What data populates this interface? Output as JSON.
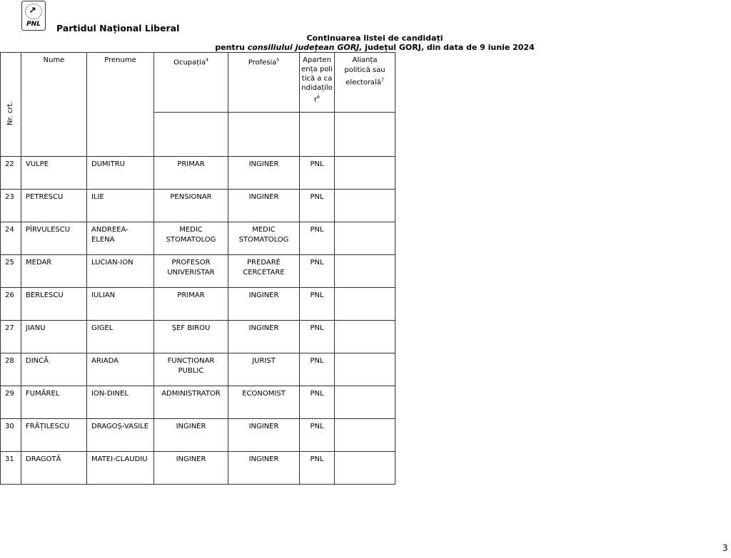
{
  "header": {
    "logo_text": "PNL",
    "party": "Partidul Național Liberal"
  },
  "title": {
    "line1": "Continuarea listei de candidați",
    "line2_prefix": "pentru ",
    "line2_italic": "consiliului județean GORJ,",
    "line2_suffix": " județul GORJ,  din data de 9 iunie 2024"
  },
  "table": {
    "headers": {
      "nr": "Nr. crt.",
      "nume": "Nume",
      "prenume": "Prenume",
      "ocupatia": "Ocupația",
      "ocupatia_sup": "4",
      "profesia": "Profesia",
      "profesia_sup": "5",
      "apartenenta": "Apartenența politică a candidaților",
      "apartenenta_sup": "6",
      "alianta": "Alianța politică sau electorală",
      "alianta_sup": "7"
    },
    "rows": [
      {
        "nr": "22",
        "nume": "VULPE",
        "prenume": "DUMITRU",
        "ocupatia": "PRIMAR",
        "profesia": "INGINER",
        "apartenenta": "PNL",
        "alianta": ""
      },
      {
        "nr": "23",
        "nume": "PETRESCU",
        "prenume": "ILIE",
        "ocupatia": "PENSIONAR",
        "profesia": "INGINER",
        "apartenenta": "PNL",
        "alianta": ""
      },
      {
        "nr": "24",
        "nume": "PÎRVULESCU",
        "prenume": "ANDREEA-ELENA",
        "ocupatia": "MEDIC STOMATOLOG",
        "profesia": "MEDIC STOMATOLOG",
        "apartenenta": "PNL",
        "alianta": ""
      },
      {
        "nr": "25",
        "nume": "MEDAR",
        "prenume": "LUCIAN-ION",
        "ocupatia": "PROFESOR UNIVERISTAR",
        "profesia": "PREDARE CERCETARE",
        "apartenenta": "PNL",
        "alianta": ""
      },
      {
        "nr": "26",
        "nume": "BERLESCU",
        "prenume": "IULIAN",
        "ocupatia": "PRIMAR",
        "profesia": "INGINER",
        "apartenenta": "PNL",
        "alianta": ""
      },
      {
        "nr": "27",
        "nume": "JIANU",
        "prenume": "GIGEL",
        "ocupatia": "ȘEF BIROU",
        "profesia": "INGINER",
        "apartenenta": "PNL",
        "alianta": ""
      },
      {
        "nr": "28",
        "nume": "DINCĂ",
        "prenume": "ARIADA",
        "ocupatia": "FUNCȚIONAR PUBLIC",
        "profesia": "JURIST",
        "apartenenta": "PNL",
        "alianta": ""
      },
      {
        "nr": "29",
        "nume": "FUMĂREL",
        "prenume": "ION-DINEL",
        "ocupatia": "ADMINISTRATOR",
        "profesia": "ECONOMIST",
        "apartenenta": "PNL",
        "alianta": ""
      },
      {
        "nr": "30",
        "nume": "FRĂȚILESCU",
        "prenume": "DRAGOȘ-VASILE",
        "ocupatia": "INGINER",
        "profesia": "INGINER",
        "apartenenta": "PNL",
        "alianta": ""
      },
      {
        "nr": "31",
        "nume": "DRAGOTĂ",
        "prenume": "MATEI-CLAUDIU",
        "ocupatia": "INGINER",
        "profesia": "INGINER",
        "apartenenta": "PNL",
        "alianta": ""
      }
    ]
  },
  "page_number": "3"
}
